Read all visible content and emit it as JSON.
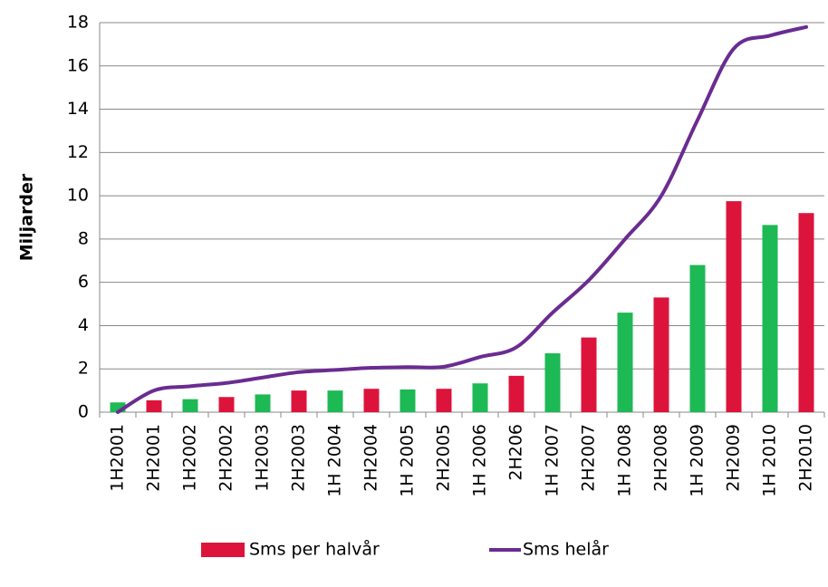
{
  "chart_data": {
    "type": "bar-line",
    "y_label": "Miljarder",
    "categories": [
      "1H2001",
      "2H2001",
      "1H2002",
      "2H2002",
      "1H2003",
      "2H2003",
      "1H 2004",
      "2H2004",
      "1H 2005",
      "2H2005",
      "1H 2006",
      "2H206",
      "1H 2007",
      "2H2007",
      "1H 2008",
      "2H2008",
      "1H 2009",
      "2H2009",
      "1H 2010",
      "2H2010"
    ],
    "series": [
      {
        "name": "Sms per halvår",
        "type": "bar",
        "color": "#dc143c",
        "colors": [
          "#1db954",
          "#dc143c",
          "#1db954",
          "#dc143c",
          "#1db954",
          "#dc143c",
          "#1db954",
          "#dc143c",
          "#1db954",
          "#dc143c",
          "#1db954",
          "#dc143c",
          "#1db954",
          "#dc143c",
          "#1db954",
          "#dc143c",
          "#1db954",
          "#dc143c",
          "#1db954",
          "#dc143c"
        ],
        "values": [
          0.45,
          0.55,
          0.6,
          0.7,
          0.82,
          1.0,
          1.0,
          1.08,
          1.05,
          1.08,
          1.33,
          1.68,
          2.72,
          3.45,
          4.6,
          5.3,
          6.8,
          9.75,
          8.65,
          9.2
        ]
      },
      {
        "name": "Sms helår",
        "type": "line",
        "color": "#6a2c91",
        "values": [
          0,
          1.0,
          1.2,
          1.35,
          1.6,
          1.85,
          1.95,
          2.05,
          2.08,
          2.1,
          2.55,
          3.0,
          4.6,
          6.1,
          8.0,
          10.0,
          13.5,
          16.8,
          17.4,
          17.8
        ]
      }
    ],
    "ylim": [
      0,
      18
    ],
    "yticks": [
      0,
      2,
      4,
      6,
      8,
      10,
      12,
      14,
      16,
      18
    ],
    "grid": true
  }
}
